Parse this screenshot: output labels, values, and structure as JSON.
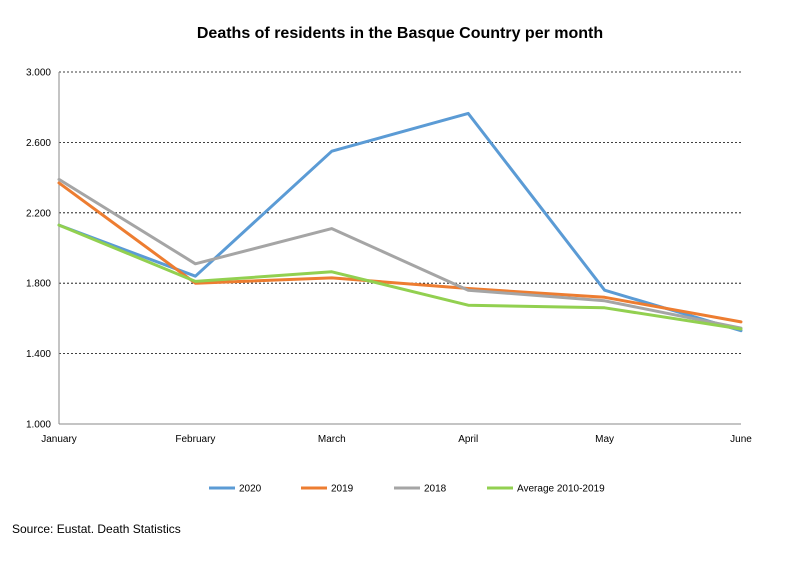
{
  "chart_data": {
    "type": "line",
    "title": "Deaths of residents in the Basque Country per month",
    "categories": [
      "January",
      "February",
      "March",
      "April",
      "May",
      "June"
    ],
    "yticks": [
      "1.000",
      "1.400",
      "1.800",
      "2.200",
      "2.600",
      "3.000"
    ],
    "ylim": [
      1000,
      3000
    ],
    "grid": true,
    "legend_position": "bottom",
    "series": [
      {
        "name": "2020",
        "color": "#5b9bd5",
        "values": [
          2130,
          1840,
          2550,
          2765,
          1760,
          1530
        ]
      },
      {
        "name": "2019",
        "color": "#ed7d31",
        "values": [
          2370,
          1800,
          1830,
          1770,
          1720,
          1580
        ]
      },
      {
        "name": "2018",
        "color": "#a5a5a5",
        "values": [
          2390,
          1910,
          2110,
          1760,
          1700,
          1545
        ]
      },
      {
        "name": "Average 2010-2019",
        "color": "#92d050",
        "values": [
          2130,
          1810,
          1865,
          1675,
          1660,
          1540
        ]
      }
    ]
  },
  "source": "Source: Eustat. Death Statistics"
}
